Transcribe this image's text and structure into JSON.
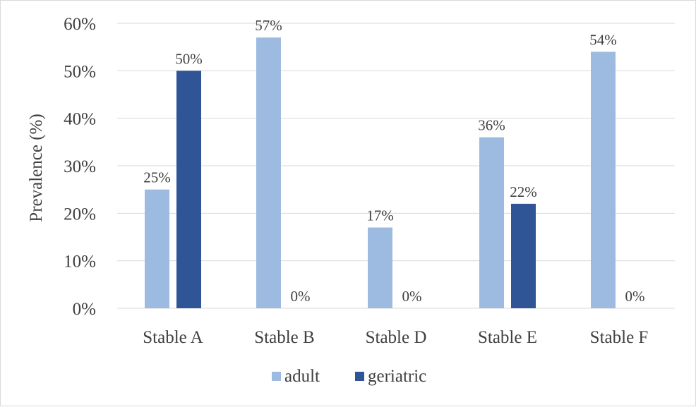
{
  "chart_data": {
    "type": "bar",
    "categories": [
      "Stable A",
      "Stable B",
      "Stable D",
      "Stable E",
      "Stable F"
    ],
    "series": [
      {
        "name": "adult",
        "values": [
          25,
          57,
          17,
          36,
          54
        ],
        "labels": [
          "25%",
          "57%",
          "17%",
          "36%",
          "54%"
        ],
        "color": "#9dbbe1"
      },
      {
        "name": "geriatric",
        "values": [
          50,
          0,
          0,
          22,
          0
        ],
        "labels": [
          "50%",
          "0%",
          "0%",
          "22%",
          "0%"
        ],
        "color": "#2f5597"
      }
    ],
    "ylabel": "Prevalence (%)",
    "xlabel": "",
    "ylim": [
      0,
      60
    ],
    "yticks": [
      0,
      10,
      20,
      30,
      40,
      50,
      60
    ],
    "ytick_labels": [
      "0%",
      "10%",
      "20%",
      "30%",
      "40%",
      "50%",
      "60%"
    ],
    "grid": true,
    "legend_position": "bottom",
    "gridline_color": "#d9d9d9",
    "text_color": "#404040"
  }
}
